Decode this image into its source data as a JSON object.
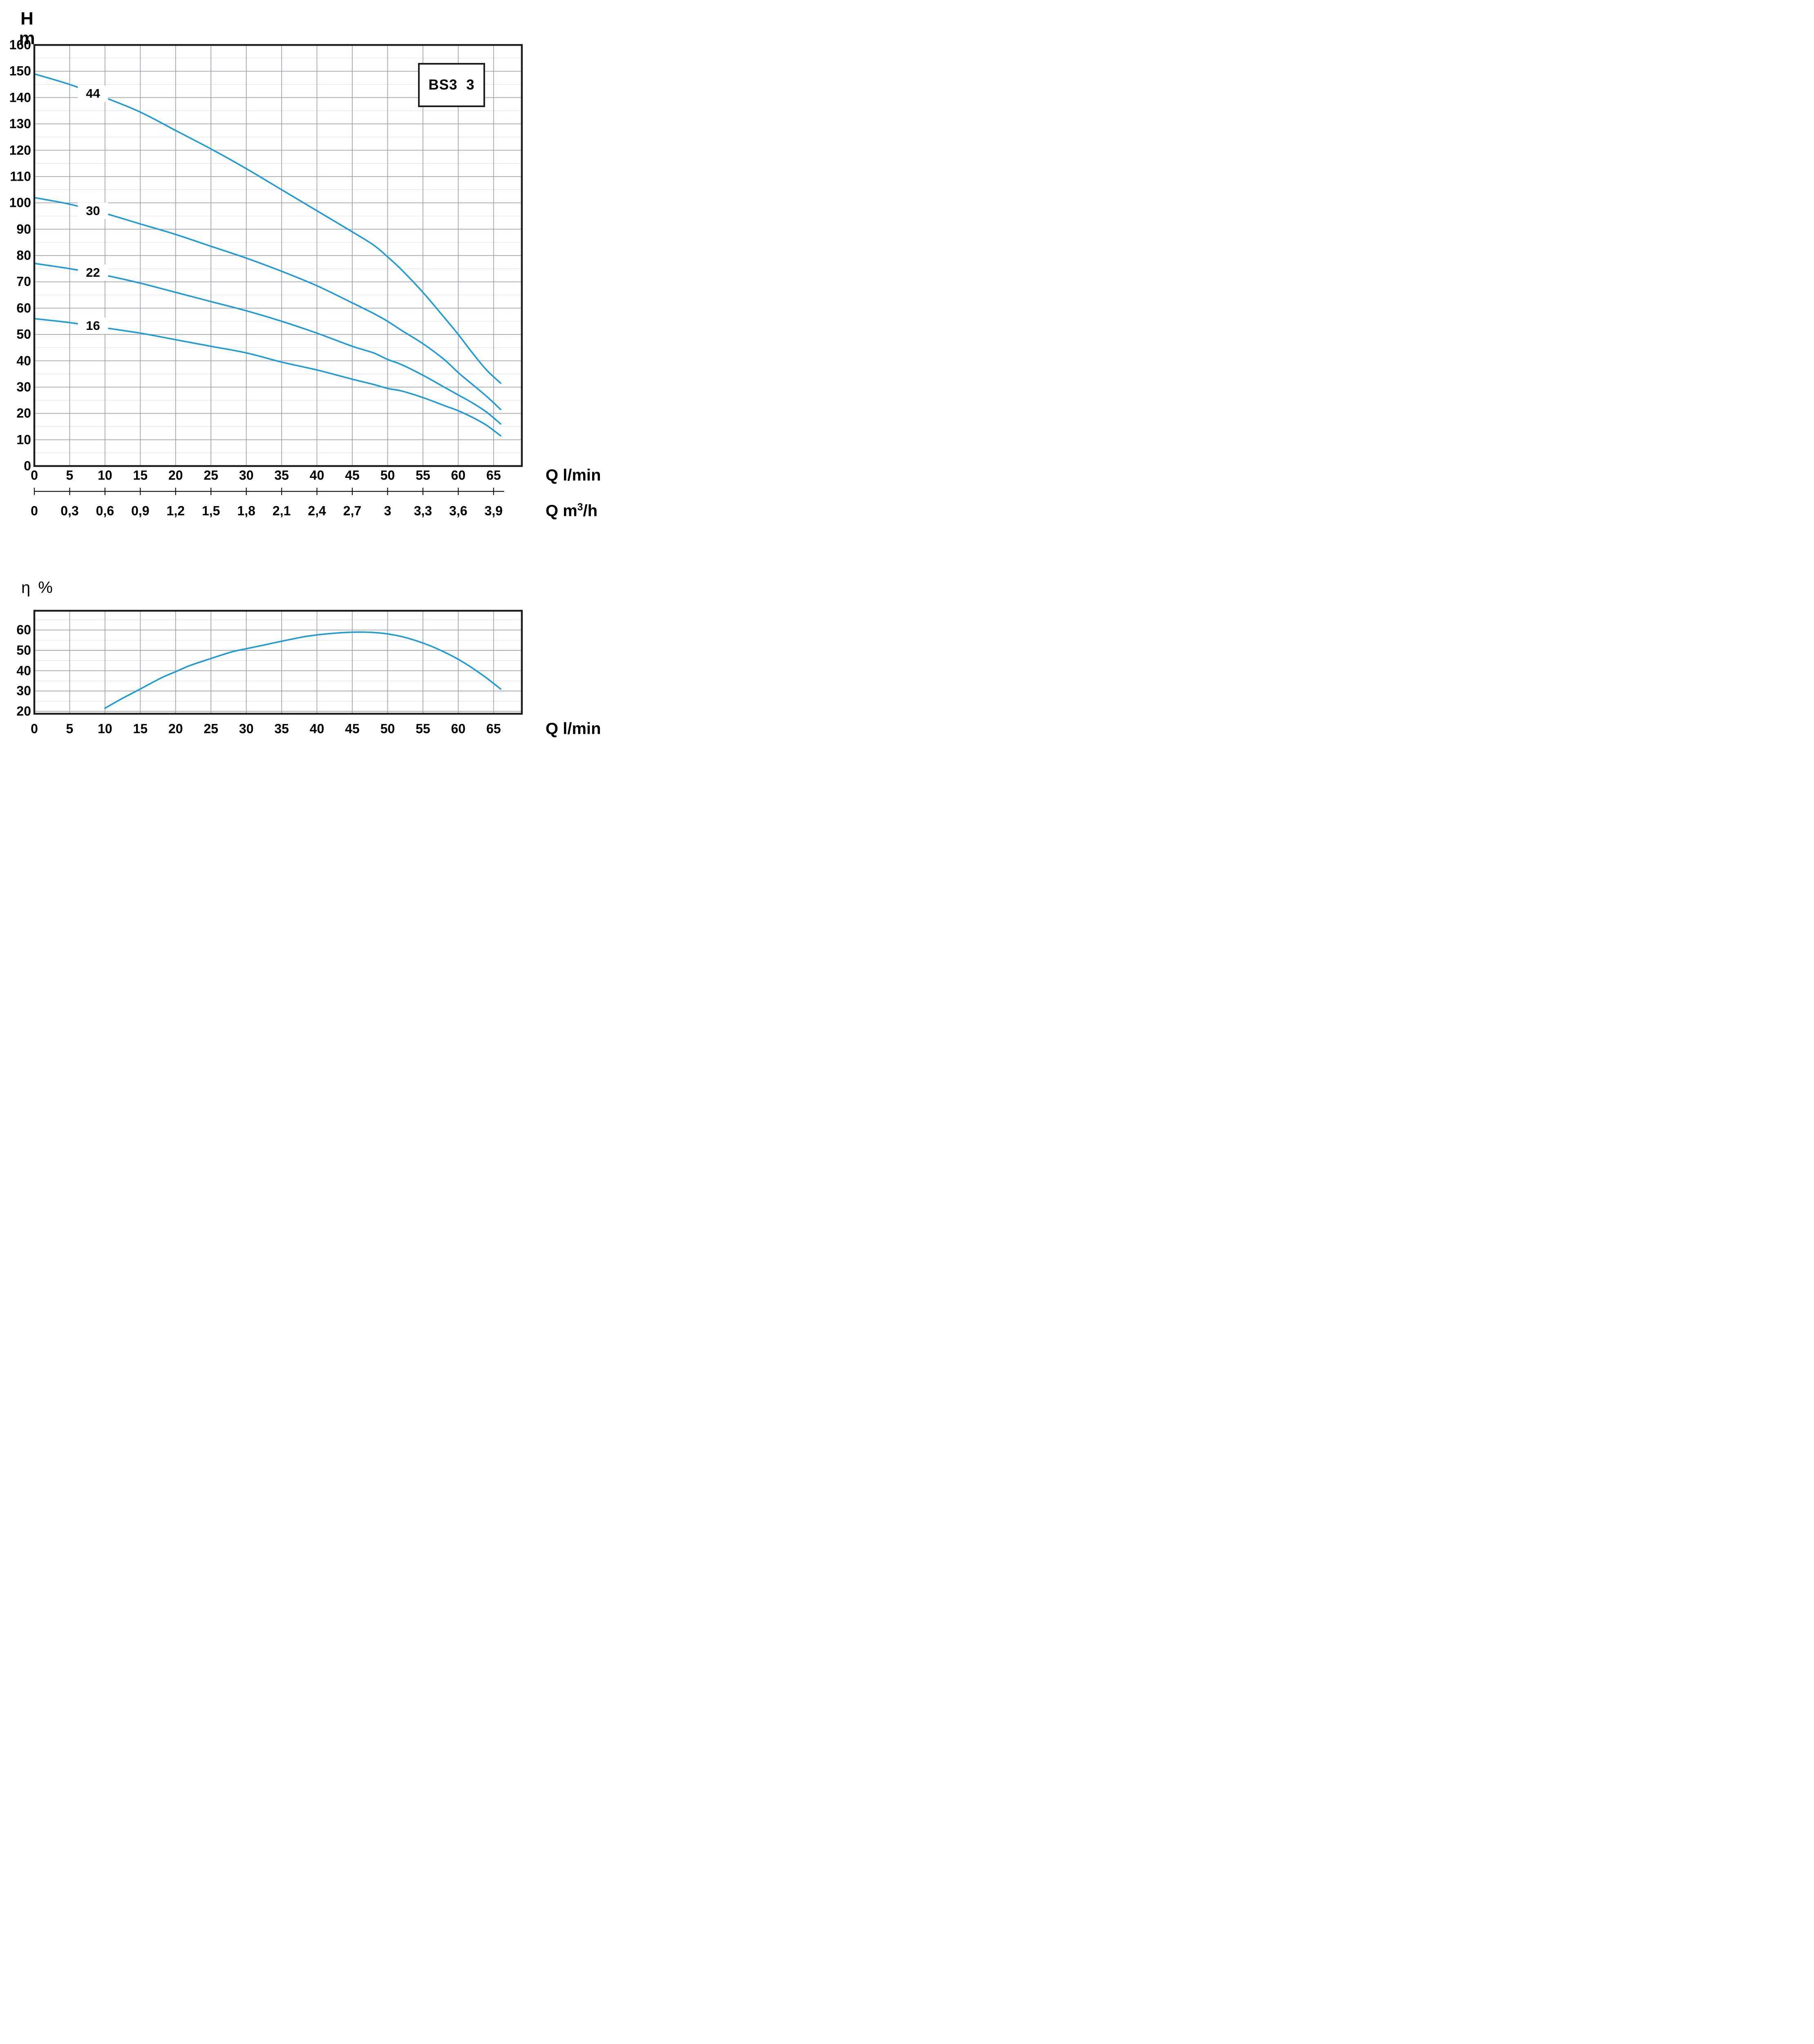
{
  "page": {
    "background": "#ffffff"
  },
  "colors": {
    "curve": "#1e9ad6",
    "grid_major": "#9fa6b0",
    "grid_minor": "#dce1e4",
    "border": "#1c1c1e",
    "text": "#000000"
  },
  "model_box": {
    "label": "BS3  3"
  },
  "head_chart_ylabel": {
    "line1": "H",
    "line2": "m"
  },
  "eff_chart_ylabel": "η %",
  "axis_titles": {
    "flow_lmin": "Q l/min",
    "flow_m3h_prefix": "Q m",
    "flow_m3h_sup": "3",
    "flow_m3h_suffix": "/h",
    "flow_lmin_bottom": "Q l/min"
  },
  "chart_data": [
    {
      "id": "head_curves",
      "type": "line",
      "title": "BS3 3",
      "xlabel": "Q l/min",
      "xlabel_secondary": "Q m3/h",
      "ylabel": "H m",
      "xlim": [
        0,
        69
      ],
      "ylim": [
        0,
        160
      ],
      "grid": {
        "x_step": 5,
        "y_minor_step": 5,
        "y_major_step": 10
      },
      "x_ticks": [
        0,
        5,
        10,
        15,
        20,
        25,
        30,
        35,
        40,
        45,
        50,
        55,
        60,
        65
      ],
      "x_ticks_secondary": [
        "0",
        "0,3",
        "0,6",
        "0,9",
        "1,2",
        "1,5",
        "1,8",
        "2,1",
        "2,4",
        "2,7",
        "3",
        "3,3",
        "3,6",
        "3,9"
      ],
      "y_ticks": [
        0,
        10,
        20,
        30,
        40,
        50,
        60,
        70,
        80,
        90,
        100,
        110,
        120,
        130,
        140,
        150,
        160
      ],
      "legend_position": "labels-on-curves",
      "series": [
        {
          "name": "44",
          "label_q": 8.3,
          "label_h": 141.5,
          "points": [
            [
              0,
              149
            ],
            [
              5,
              145
            ],
            [
              10,
              140
            ],
            [
              15,
              134.5
            ],
            [
              20,
              127.5
            ],
            [
              25,
              120.5
            ],
            [
              30,
              113
            ],
            [
              35,
              105
            ],
            [
              40,
              97
            ],
            [
              45,
              89
            ],
            [
              48,
              84
            ],
            [
              50,
              79.5
            ],
            [
              52,
              74.5
            ],
            [
              55,
              66
            ],
            [
              58,
              56.5
            ],
            [
              60,
              50
            ],
            [
              62,
              43
            ],
            [
              64,
              36.5
            ],
            [
              66,
              31.5
            ]
          ]
        },
        {
          "name": "30",
          "label_q": 8.3,
          "label_h": 97,
          "points": [
            [
              0,
              102
            ],
            [
              5,
              99.5
            ],
            [
              10,
              96
            ],
            [
              15,
              92
            ],
            [
              20,
              88
            ],
            [
              25,
              83.5
            ],
            [
              30,
              79
            ],
            [
              35,
              74
            ],
            [
              40,
              68.5
            ],
            [
              45,
              62
            ],
            [
              48,
              58
            ],
            [
              50,
              55
            ],
            [
              52,
              51.5
            ],
            [
              55,
              46.5
            ],
            [
              58,
              40.5
            ],
            [
              60,
              35.5
            ],
            [
              62,
              31
            ],
            [
              64,
              26.5
            ],
            [
              66,
              21.5
            ]
          ]
        },
        {
          "name": "22",
          "label_q": 8.3,
          "label_h": 73.5,
          "points": [
            [
              0,
              77
            ],
            [
              5,
              75
            ],
            [
              10,
              72.5
            ],
            [
              15,
              69.5
            ],
            [
              20,
              66
            ],
            [
              25,
              62.5
            ],
            [
              30,
              59
            ],
            [
              35,
              55
            ],
            [
              40,
              50.5
            ],
            [
              45,
              45.5
            ],
            [
              48,
              43
            ],
            [
              50,
              40.5
            ],
            [
              52,
              38.5
            ],
            [
              55,
              34.5
            ],
            [
              58,
              30
            ],
            [
              60,
              27
            ],
            [
              62,
              24
            ],
            [
              64,
              20.5
            ],
            [
              66,
              16
            ]
          ]
        },
        {
          "name": "16",
          "label_q": 8.3,
          "label_h": 53.3,
          "points": [
            [
              0,
              56
            ],
            [
              5,
              54.5
            ],
            [
              10,
              52.5
            ],
            [
              15,
              50.5
            ],
            [
              20,
              48
            ],
            [
              25,
              45.5
            ],
            [
              30,
              43
            ],
            [
              35,
              39.5
            ],
            [
              40,
              36.5
            ],
            [
              45,
              33
            ],
            [
              48,
              31
            ],
            [
              50,
              29.5
            ],
            [
              52,
              28.5
            ],
            [
              55,
              26
            ],
            [
              58,
              23
            ],
            [
              60,
              21
            ],
            [
              62,
              18.5
            ],
            [
              64,
              15.5
            ],
            [
              66,
              11.5
            ]
          ]
        }
      ]
    },
    {
      "id": "efficiency",
      "type": "line",
      "title": "",
      "xlabel": "Q l/min",
      "ylabel": "η %",
      "xlim": [
        0,
        69
      ],
      "ylim": [
        18.8,
        69.5
      ],
      "grid": {
        "x_step": 5,
        "y_minor_step": 5,
        "y_major_step": 10,
        "y_grid_min": 20,
        "y_grid_max": 65
      },
      "x_ticks": [
        0,
        5,
        10,
        15,
        20,
        25,
        30,
        35,
        40,
        45,
        50,
        55,
        60,
        65
      ],
      "y_ticks": [
        20,
        30,
        40,
        50,
        60
      ],
      "series": [
        {
          "name": "eta",
          "points": [
            [
              10,
              21.5
            ],
            [
              12,
              25.5
            ],
            [
              15,
              31
            ],
            [
              18,
              36.5
            ],
            [
              20,
              39.5
            ],
            [
              22,
              42.5
            ],
            [
              25,
              46
            ],
            [
              28,
              49.3
            ],
            [
              30,
              50.8
            ],
            [
              33,
              53
            ],
            [
              35,
              54.5
            ],
            [
              38,
              56.6
            ],
            [
              40,
              57.6
            ],
            [
              42,
              58.3
            ],
            [
              44,
              58.8
            ],
            [
              46,
              59
            ],
            [
              48,
              58.8
            ],
            [
              50,
              58.1
            ],
            [
              52,
              56.8
            ],
            [
              54,
              54.8
            ],
            [
              56,
              52.3
            ],
            [
              58,
              49.2
            ],
            [
              60,
              45.6
            ],
            [
              62,
              41.3
            ],
            [
              64,
              36.4
            ],
            [
              66,
              31
            ]
          ]
        }
      ]
    }
  ]
}
